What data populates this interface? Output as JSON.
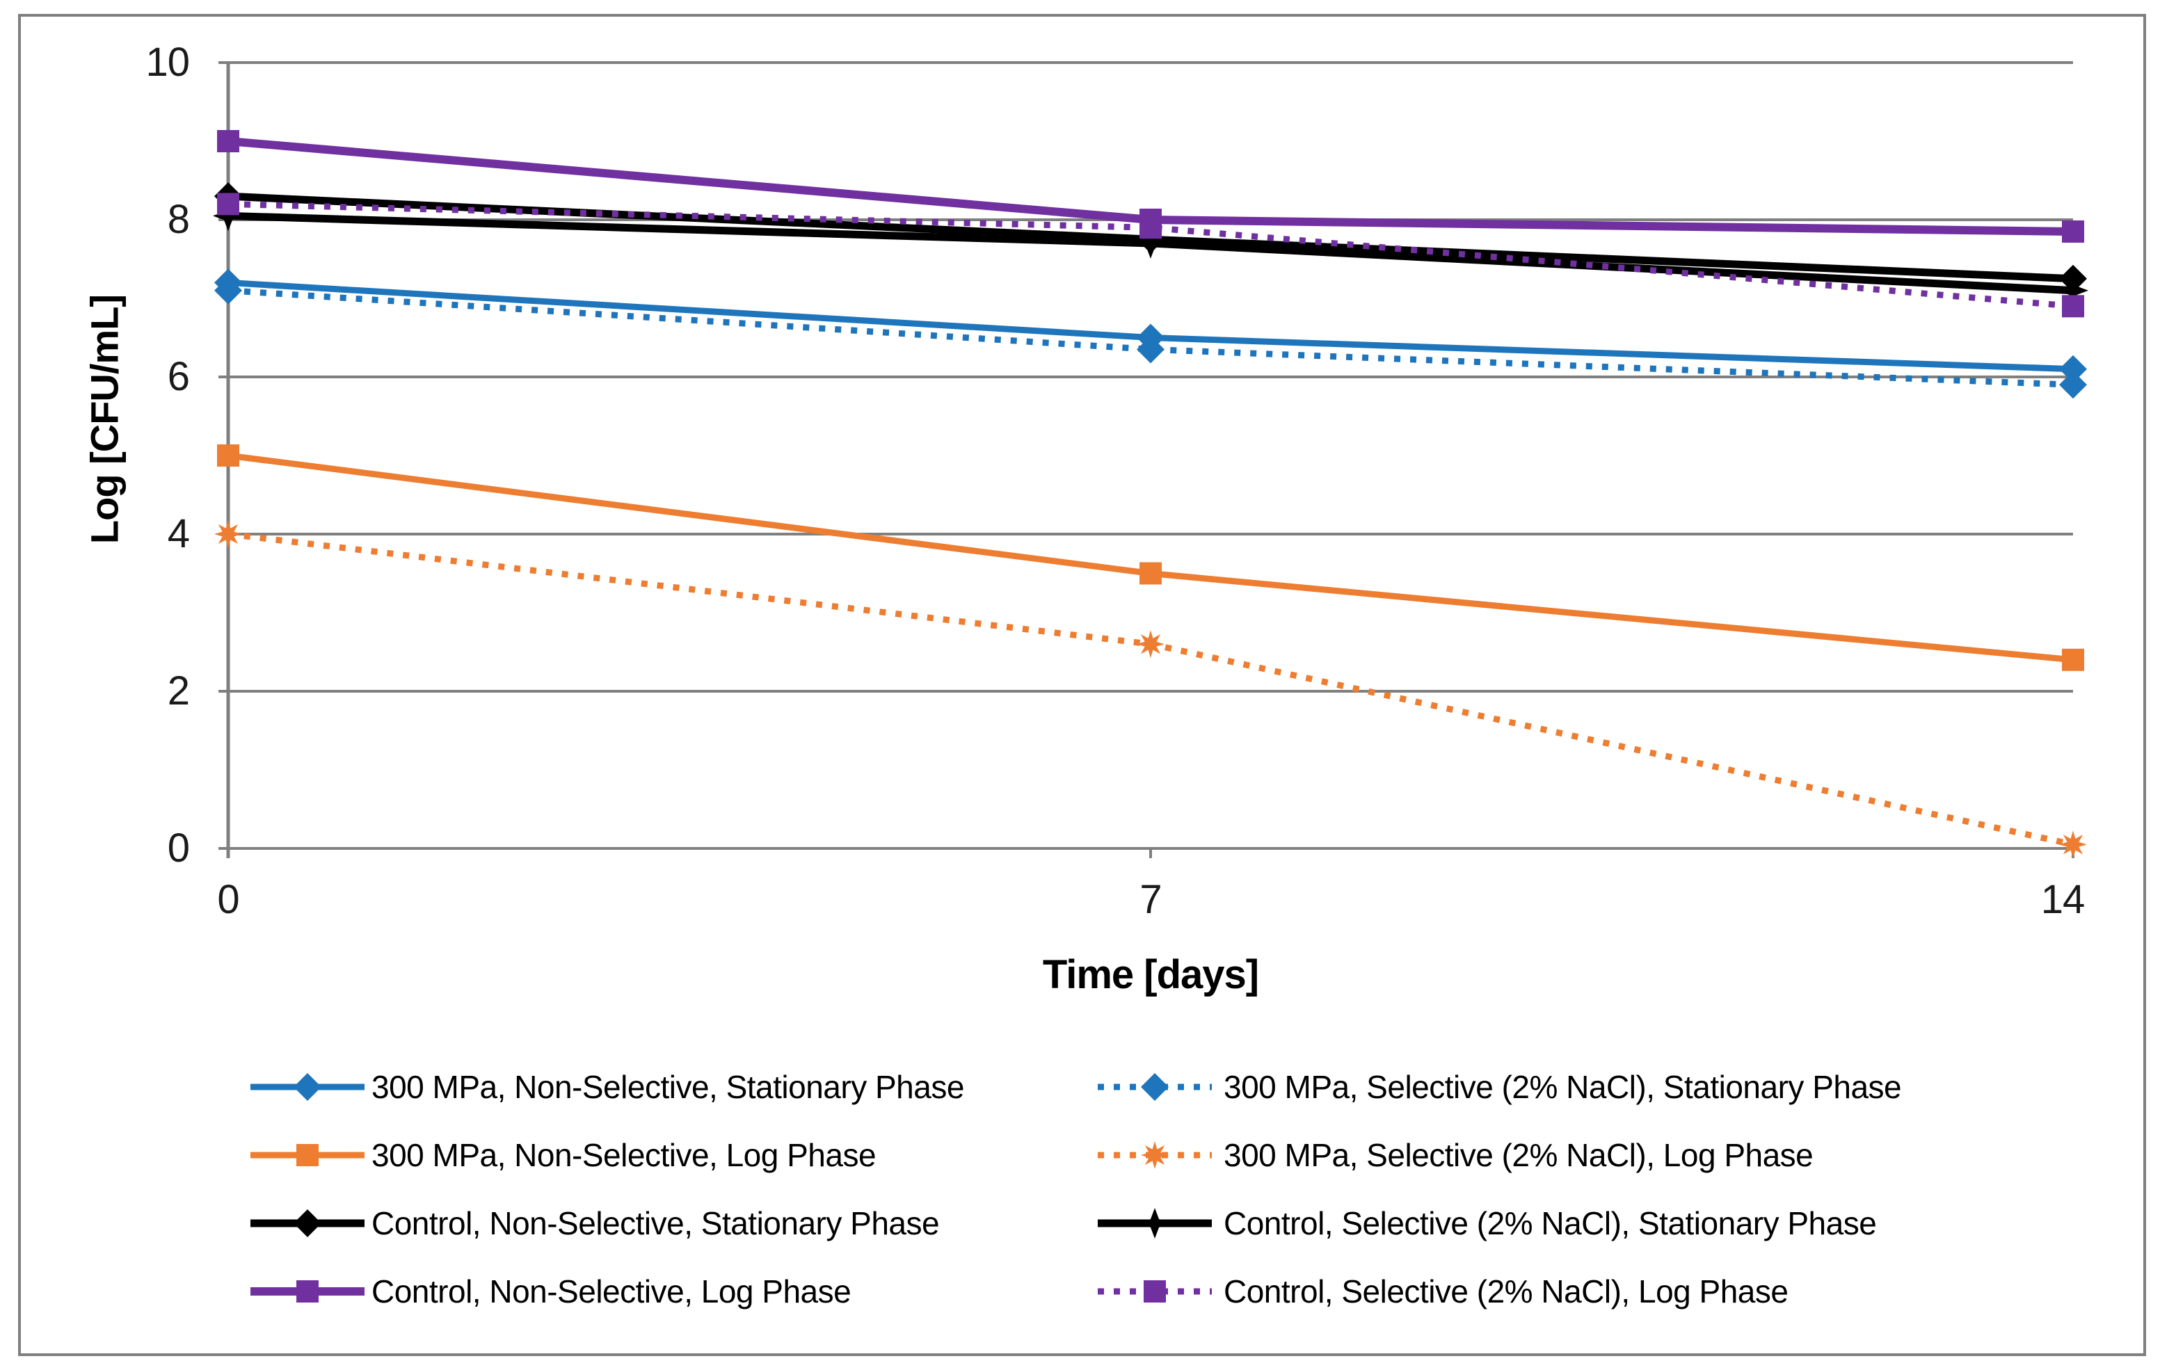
{
  "figure": {
    "background": "#FFFFFF",
    "border_color": "#7F7F7F",
    "grid_color": "#808080",
    "axis_color": "#7F7F7F"
  },
  "chart_data": {
    "type": "line",
    "x": [
      0,
      7,
      14
    ],
    "x_tick_labels": [
      "0",
      "7",
      "14"
    ],
    "y_ticks": [
      10,
      8,
      6,
      4,
      2,
      0
    ],
    "y_tick_labels": [
      "10",
      "8",
      "6",
      "4",
      "2",
      "0"
    ],
    "xlabel": "Time [days]",
    "ylabel": "Log [CFU/mL]",
    "ylim": [
      0,
      10
    ],
    "grid": "horizontal gridlines every 2 units",
    "legend_position": "bottom, two columns",
    "series": [
      {
        "name": "300 MPa, Non-Selective, Stationary Phase",
        "values": [
          7.2,
          6.5,
          6.1
        ],
        "color": "#1F75BB",
        "line": "solid",
        "marker": "diamond",
        "legend_column": 0,
        "legend_row": 0
      },
      {
        "name": "300 MPa, Non-Selective, Log Phase",
        "values": [
          5.0,
          3.5,
          2.4
        ],
        "color": "#ED7D31",
        "line": "solid",
        "marker": "square",
        "legend_column": 0,
        "legend_row": 1
      },
      {
        "name": "Control, Non-Selective, Stationary Phase",
        "values": [
          8.3,
          7.75,
          7.25
        ],
        "color": "#000000",
        "line": "solid",
        "marker": "diamond",
        "legend_column": 0,
        "legend_row": 2
      },
      {
        "name": "Control, Non-Selective, Log Phase",
        "values": [
          9.0,
          8.0,
          7.85
        ],
        "color": "#7030A0",
        "line": "solid",
        "marker": "square",
        "legend_column": 0,
        "legend_row": 3
      },
      {
        "name": "300 MPa, Selective (2% NaCl), Stationary Phase",
        "values": [
          7.1,
          6.35,
          5.9
        ],
        "color": "#1F75BB",
        "line": "dotted",
        "marker": "diamond",
        "legend_column": 1,
        "legend_row": 0
      },
      {
        "name": "300 MPa, Selective (2% NaCl), Log Phase",
        "values": [
          4.0,
          2.6,
          0.05
        ],
        "color": "#ED7D31",
        "line": "dotted",
        "marker": "star8",
        "legend_column": 1,
        "legend_row": 1
      },
      {
        "name": "Control, Selective (2% NaCl), Stationary Phase",
        "values": [
          8.05,
          7.7,
          7.1
        ],
        "color": "#000000",
        "line": "solid",
        "marker": "star4",
        "legend_column": 1,
        "legend_row": 2
      },
      {
        "name": "Control, Selective (2% NaCl), Log Phase",
        "values": [
          8.2,
          7.9,
          6.9
        ],
        "color": "#7030A0",
        "line": "dotted",
        "marker": "square",
        "legend_column": 1,
        "legend_row": 3
      }
    ]
  }
}
